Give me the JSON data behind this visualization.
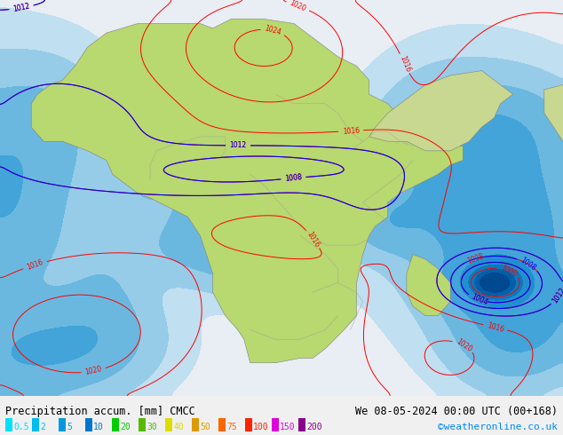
{
  "title_left": "Precipitation accum. [mm] CMCC",
  "title_right": "We 08-05-2024 00:00 UTC (00+168)",
  "credit": "©weatheronline.co.uk",
  "legend_values": [
    "0.5",
    "2",
    "5",
    "10",
    "20",
    "30",
    "40",
    "50",
    "75",
    "100",
    "150",
    "200"
  ],
  "legend_colors": [
    "#00e5ff",
    "#00bbff",
    "#0088ff",
    "#0055ff",
    "#aaff00",
    "#88ee00",
    "#ffee00",
    "#ffaa00",
    "#ff6600",
    "#ff0000",
    "#dd00dd",
    "#880088"
  ],
  "precip_levels": [
    0,
    0.5,
    2,
    5,
    10,
    20,
    30,
    40,
    50,
    75,
    100,
    150,
    200,
    500
  ],
  "precip_colors": [
    "#e8f0f8",
    "#c8e8f8",
    "#a0d8f0",
    "#70c0e8",
    "#40a8e0",
    "#1890d8",
    "#0070c0",
    "#0050a0",
    "#003080",
    "#001860",
    "#000840",
    "#000020",
    "#000010"
  ],
  "figsize": [
    6.34,
    4.9
  ],
  "dpi": 100,
  "lon_min": -22,
  "lon_max": 68,
  "lat_min": -42,
  "lat_max": 42
}
